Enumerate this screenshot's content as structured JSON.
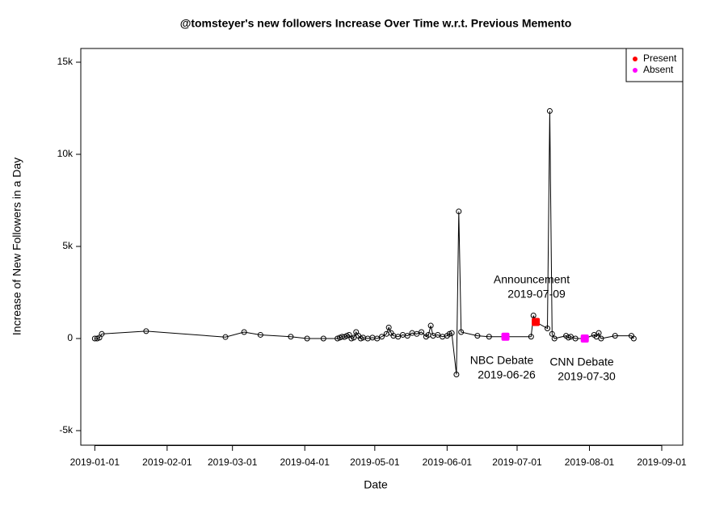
{
  "chart_data": {
    "type": "line",
    "title": "@tomsteyer's new followers Increase Over Time w.r.t. Previous Memento",
    "xlabel": "Date",
    "ylabel": "Increase of New Followers in a Day",
    "xlim": [
      "2018-12-26",
      "2019-09-10"
    ],
    "xticks": [
      "2019-01-01",
      "2019-02-01",
      "2019-03-01",
      "2019-04-01",
      "2019-05-01",
      "2019-06-01",
      "2019-07-01",
      "2019-08-01",
      "2019-09-01"
    ],
    "ylim": [
      -5789,
      15746
    ],
    "yticks": [
      {
        "value": -5000,
        "label": "-5k"
      },
      0,
      {
        "value": 5000,
        "label": "5k"
      },
      {
        "value": 10000,
        "label": "10k"
      },
      {
        "value": 15000,
        "label": "15k"
      }
    ],
    "series": [
      {
        "color": "#000000",
        "x": [
          "2019-01-01",
          "2019-01-02",
          "2019-01-03",
          "2019-01-04",
          "2019-01-23",
          "2019-02-26",
          "2019-03-06",
          "2019-03-13",
          "2019-03-26",
          "2019-04-02",
          "2019-04-09",
          "2019-04-15",
          "2019-04-16",
          "2019-04-17",
          "2019-04-18",
          "2019-04-19",
          "2019-04-20",
          "2019-04-21",
          "2019-04-22",
          "2019-04-23",
          "2019-04-24",
          "2019-04-25",
          "2019-04-26",
          "2019-04-28",
          "2019-04-30",
          "2019-05-02",
          "2019-05-04",
          "2019-05-06",
          "2019-05-07",
          "2019-05-08",
          "2019-05-09",
          "2019-05-11",
          "2019-05-13",
          "2019-05-15",
          "2019-05-17",
          "2019-05-19",
          "2019-05-21",
          "2019-05-23",
          "2019-05-24",
          "2019-05-25",
          "2019-05-26",
          "2019-05-28",
          "2019-05-30",
          "2019-06-01",
          "2019-06-02",
          "2019-06-03",
          "2019-06-05",
          "2019-06-06",
          "2019-06-07",
          "2019-06-14",
          "2019-06-19",
          "2019-06-26",
          "2019-07-07",
          "2019-07-08",
          "2019-07-09",
          "2019-07-14",
          "2019-07-15",
          "2019-07-16",
          "2019-07-17",
          "2019-07-22",
          "2019-07-23",
          "2019-07-24",
          "2019-07-26",
          "2019-07-30",
          "2019-08-03",
          "2019-08-04",
          "2019-08-05",
          "2019-08-06",
          "2019-08-12",
          "2019-08-19",
          "2019-08-20"
        ],
        "values": [
          0,
          0,
          50,
          250,
          400,
          80,
          350,
          200,
          100,
          0,
          0,
          0,
          50,
          100,
          80,
          150,
          200,
          0,
          50,
          350,
          150,
          0,
          50,
          0,
          50,
          0,
          100,
          250,
          600,
          300,
          150,
          100,
          200,
          150,
          300,
          250,
          350,
          100,
          200,
          700,
          150,
          200,
          100,
          150,
          250,
          300,
          -1950,
          6900,
          350,
          150,
          100,
          100,
          100,
          1250,
          900,
          550,
          12350,
          250,
          0,
          150,
          50,
          100,
          0,
          0,
          200,
          100,
          300,
          0,
          150,
          150,
          0
        ]
      },
      {
        "name": "Present",
        "color": "#ff0000",
        "x": [
          "2019-07-09"
        ],
        "values": [
          900
        ]
      },
      {
        "name": "Absent",
        "color": "#ff00ff",
        "x": [
          "2019-06-26",
          "2019-07-30"
        ],
        "values": [
          100,
          0
        ]
      }
    ],
    "annotations": [
      {
        "lines": [
          "Announcement",
          "2019-07-09"
        ]
      },
      {
        "lines": [
          "NBC Debate",
          "2019-06-26"
        ]
      },
      {
        "lines": [
          "CNN Debate",
          "2019-07-30"
        ]
      }
    ],
    "legend_position": "top-right"
  }
}
